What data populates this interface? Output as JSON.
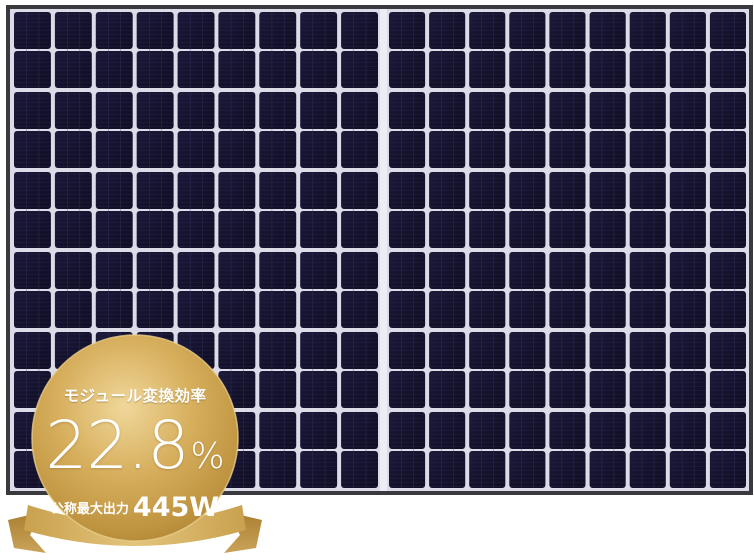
{
  "badge": {
    "title": "モジュール変換効率",
    "efficiency_value": "22.8",
    "efficiency_unit": "%",
    "output_label": "公称最大出力",
    "output_value": "445W"
  },
  "colors": {
    "panel_frame": "#3a3a3e",
    "cell": "#15132e",
    "cell_gap": "#d8d8e6",
    "badge_gold": "#c9a24a",
    "ribbon_gold": "#b88d36"
  },
  "panel": {
    "cell_columns": 18,
    "cell_rows": 6
  }
}
